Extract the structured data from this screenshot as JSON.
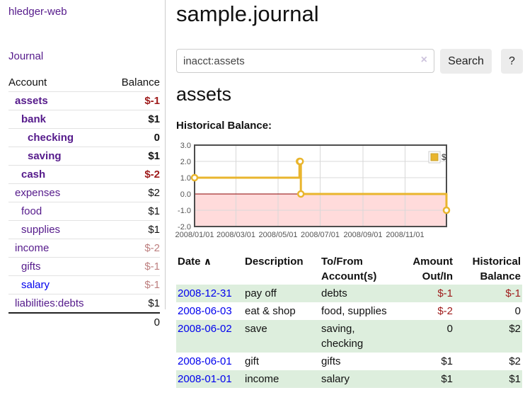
{
  "sidebar": {
    "brand": "hledger-web",
    "journal_link": "Journal",
    "accounts": {
      "header_account": "Account",
      "header_balance": "Balance",
      "rows": [
        {
          "name": "assets",
          "balance": "$-1"
        },
        {
          "name": "bank",
          "balance": "$1"
        },
        {
          "name": "checking",
          "balance": "0"
        },
        {
          "name": "saving",
          "balance": "$1"
        },
        {
          "name": "cash",
          "balance": "$-2"
        },
        {
          "name": "expenses",
          "balance": "$2"
        },
        {
          "name": "food",
          "balance": "$1"
        },
        {
          "name": "supplies",
          "balance": "$1"
        },
        {
          "name": "income",
          "balance": "$-2"
        },
        {
          "name": "gifts",
          "balance": "$-1"
        },
        {
          "name": "salary",
          "balance": "$-1"
        },
        {
          "name": "liabilities:debts",
          "balance": "$1"
        }
      ],
      "total": "0"
    }
  },
  "main": {
    "title": "sample.journal",
    "search": {
      "value": "inacct:assets",
      "placeholder": "",
      "clear_icon": "×",
      "search_button": "Search",
      "help_button": "?"
    },
    "account_heading": "assets",
    "chart_label": "Historical Balance:"
  },
  "icons": {
    "sort_ascending": "∧"
  },
  "chart_data": {
    "type": "line",
    "title": "Historical Balance",
    "step": true,
    "grid": true,
    "legend_position": "top-right",
    "x_range": [
      "2008-01-01",
      "2008-12-31"
    ],
    "ylim": [
      -2,
      3
    ],
    "y_ticks": [
      {
        "label": "3.0",
        "value": 3
      },
      {
        "label": "2.0",
        "value": 2
      },
      {
        "label": "1.0",
        "value": 1
      },
      {
        "label": "0.0",
        "value": 0
      },
      {
        "label": "-1.0",
        "value": -1
      },
      {
        "label": "-2.0",
        "value": -2
      }
    ],
    "x_ticks": [
      {
        "label": "2008/01/01",
        "date": "2008-01-01"
      },
      {
        "label": "2008/03/01",
        "date": "2008-03-01"
      },
      {
        "label": "2008/05/01",
        "date": "2008-05-01"
      },
      {
        "label": "2008/07/01",
        "date": "2008-07-01"
      },
      {
        "label": "2008/09/01",
        "date": "2008-09-01"
      },
      {
        "label": "2008/11/01",
        "date": "2008-11-01"
      }
    ],
    "series": [
      {
        "name": "$",
        "color": "#e9b52d",
        "points": [
          [
            "2008-01-01",
            1
          ],
          [
            "2008-06-01",
            2
          ],
          [
            "2008-06-02",
            2
          ],
          [
            "2008-06-03",
            0
          ],
          [
            "2008-12-31",
            -1
          ]
        ]
      }
    ],
    "colors": {
      "negative_region": "#ffdbdb",
      "zero_line": "#8b0000",
      "gridline": "#d8d8d8",
      "plot_border": "#4d4d4d",
      "axis_text": "#545454"
    }
  },
  "register": {
    "headers": {
      "date": "Date",
      "description": "Description",
      "accounts": "To/From Account(s)",
      "amount": "Amount Out/In",
      "balance": "Historical Balance"
    },
    "rows": [
      {
        "date": "2008-12-31",
        "description": "pay off",
        "accounts": "debts",
        "amount": "$-1",
        "balance": "$-1"
      },
      {
        "date": "2008-06-03",
        "description": "eat & shop",
        "accounts": "food, supplies",
        "amount": "$-2",
        "balance": "0"
      },
      {
        "date": "2008-06-02",
        "description": "save",
        "accounts": "saving, checking",
        "amount": "0",
        "balance": "$2"
      },
      {
        "date": "2008-06-01",
        "description": "gift",
        "accounts": "gifts",
        "amount": "$1",
        "balance": "$2"
      },
      {
        "date": "2008-01-01",
        "description": "income",
        "accounts": "salary",
        "amount": "$1",
        "balance": "$1"
      }
    ]
  }
}
